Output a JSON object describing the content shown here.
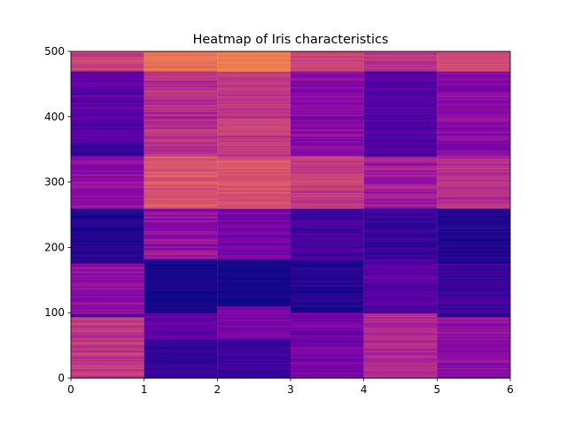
{
  "chart_data": {
    "type": "heatmap",
    "title": "Heatmap of Iris characteristics",
    "xlabel": "",
    "ylabel": "",
    "xlim": [
      0,
      6
    ],
    "ylim": [
      0,
      500
    ],
    "x_ticks": [
      "0",
      "1",
      "2",
      "3",
      "4",
      "5",
      "6"
    ],
    "y_ticks": [
      "0",
      "100",
      "200",
      "300",
      "400",
      "500"
    ],
    "colormap": "plasma",
    "value_range": [
      0,
      1
    ],
    "columns": 6,
    "rows": 500,
    "column_profiles": [
      {
        "column": 0,
        "segments": [
          {
            "y0": 0,
            "y1": 93,
            "level": 0.55,
            "noise": 0.1
          },
          {
            "y0": 93,
            "y1": 97,
            "level": 0.12,
            "noise": 0.02
          },
          {
            "y0": 97,
            "y1": 176,
            "level": 0.38,
            "noise": 0.08
          },
          {
            "y0": 176,
            "y1": 260,
            "level": 0.05,
            "noise": 0.05
          },
          {
            "y0": 260,
            "y1": 340,
            "level": 0.38,
            "noise": 0.08
          },
          {
            "y0": 340,
            "y1": 360,
            "level": 0.1,
            "noise": 0.05
          },
          {
            "y0": 360,
            "y1": 470,
            "level": 0.2,
            "noise": 0.08
          },
          {
            "y0": 470,
            "y1": 500,
            "level": 0.6,
            "noise": 0.08
          }
        ]
      },
      {
        "column": 1,
        "segments": [
          {
            "y0": 0,
            "y1": 60,
            "level": 0.1,
            "noise": 0.04
          },
          {
            "y0": 60,
            "y1": 100,
            "level": 0.22,
            "noise": 0.06
          },
          {
            "y0": 100,
            "y1": 182,
            "level": 0.02,
            "noise": 0.03
          },
          {
            "y0": 182,
            "y1": 260,
            "level": 0.4,
            "noise": 0.1
          },
          {
            "y0": 260,
            "y1": 340,
            "level": 0.7,
            "noise": 0.08
          },
          {
            "y0": 340,
            "y1": 470,
            "level": 0.52,
            "noise": 0.1
          },
          {
            "y0": 470,
            "y1": 500,
            "level": 0.82,
            "noise": 0.06
          }
        ]
      },
      {
        "column": 2,
        "segments": [
          {
            "y0": 0,
            "y1": 60,
            "level": 0.12,
            "noise": 0.05
          },
          {
            "y0": 60,
            "y1": 110,
            "level": 0.3,
            "noise": 0.06
          },
          {
            "y0": 110,
            "y1": 182,
            "level": 0.02,
            "noise": 0.03
          },
          {
            "y0": 182,
            "y1": 260,
            "level": 0.28,
            "noise": 0.08
          },
          {
            "y0": 260,
            "y1": 340,
            "level": 0.68,
            "noise": 0.07
          },
          {
            "y0": 340,
            "y1": 470,
            "level": 0.58,
            "noise": 0.08
          },
          {
            "y0": 470,
            "y1": 500,
            "level": 0.86,
            "noise": 0.05
          }
        ]
      },
      {
        "column": 3,
        "segments": [
          {
            "y0": 0,
            "y1": 100,
            "level": 0.3,
            "noise": 0.07
          },
          {
            "y0": 100,
            "y1": 182,
            "level": 0.06,
            "noise": 0.05
          },
          {
            "y0": 182,
            "y1": 260,
            "level": 0.15,
            "noise": 0.06
          },
          {
            "y0": 260,
            "y1": 340,
            "level": 0.58,
            "noise": 0.08
          },
          {
            "y0": 340,
            "y1": 470,
            "level": 0.35,
            "noise": 0.08
          },
          {
            "y0": 470,
            "y1": 500,
            "level": 0.62,
            "noise": 0.06
          }
        ]
      },
      {
        "column": 4,
        "segments": [
          {
            "y0": 0,
            "y1": 100,
            "level": 0.5,
            "noise": 0.07
          },
          {
            "y0": 100,
            "y1": 182,
            "level": 0.2,
            "noise": 0.07
          },
          {
            "y0": 182,
            "y1": 260,
            "level": 0.1,
            "noise": 0.06
          },
          {
            "y0": 260,
            "y1": 340,
            "level": 0.45,
            "noise": 0.08
          },
          {
            "y0": 340,
            "y1": 470,
            "level": 0.18,
            "noise": 0.07
          },
          {
            "y0": 470,
            "y1": 500,
            "level": 0.55,
            "noise": 0.06
          }
        ]
      },
      {
        "column": 5,
        "segments": [
          {
            "y0": 0,
            "y1": 93,
            "level": 0.38,
            "noise": 0.07
          },
          {
            "y0": 93,
            "y1": 97,
            "level": 0.08,
            "noise": 0.02
          },
          {
            "y0": 97,
            "y1": 176,
            "level": 0.12,
            "noise": 0.06
          },
          {
            "y0": 176,
            "y1": 260,
            "level": 0.05,
            "noise": 0.05
          },
          {
            "y0": 260,
            "y1": 340,
            "level": 0.52,
            "noise": 0.08
          },
          {
            "y0": 340,
            "y1": 470,
            "level": 0.35,
            "noise": 0.08
          },
          {
            "y0": 470,
            "y1": 500,
            "level": 0.65,
            "noise": 0.05
          }
        ]
      }
    ],
    "grid": false,
    "legend": "none"
  }
}
